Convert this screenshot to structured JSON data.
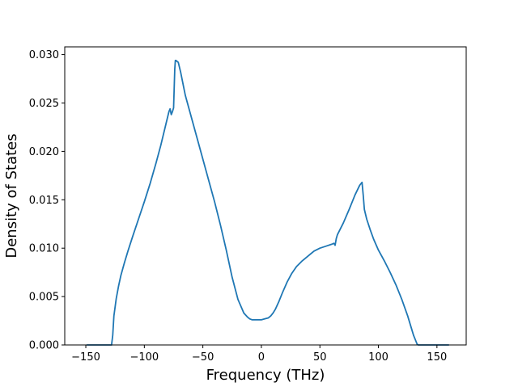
{
  "chart_data": {
    "type": "line",
    "title": "",
    "xlabel": "Frequency (THz)",
    "ylabel": "Density of States",
    "xlim": [
      -168,
      175
    ],
    "ylim": [
      0,
      0.0308
    ],
    "xticks": [
      -150,
      -100,
      -50,
      0,
      50,
      100,
      150
    ],
    "xtick_labels": [
      "−150",
      "−100",
      "−50",
      "0",
      "50",
      "100",
      "150"
    ],
    "yticks": [
      0,
      0.005,
      0.01,
      0.015,
      0.02,
      0.025,
      0.03
    ],
    "ytick_labels": [
      "0.000",
      "0.005",
      "0.010",
      "0.015",
      "0.020",
      "0.025",
      "0.030"
    ],
    "grid": false,
    "series": [
      {
        "color": "#1f77b4",
        "x": [
          -149,
          -128,
          -127,
          -126,
          -124,
          -122,
          -120,
          -117,
          -114,
          -110,
          -105,
          -100,
          -95,
          -90,
          -86,
          -82,
          -80,
          -79,
          -78,
          -77,
          -76,
          -75,
          -74,
          -73.5,
          -73,
          -71,
          -69,
          -67,
          -65,
          -60,
          -55,
          -50,
          -45,
          -40,
          -35,
          -30,
          -25,
          -20,
          -15,
          -12,
          -10,
          -8,
          -6,
          -4,
          -2,
          0,
          3,
          6,
          8,
          10,
          12,
          15,
          18,
          22,
          26,
          30,
          35,
          40,
          45,
          50,
          55,
          60,
          62,
          63,
          64,
          65,
          70,
          75,
          80,
          84,
          86,
          87,
          88,
          90,
          93,
          96,
          100,
          105,
          110,
          115,
          120,
          125,
          128,
          130,
          132,
          133,
          134,
          135,
          140,
          145,
          150,
          160
        ],
        "y": [
          0,
          0,
          0.001,
          0.003,
          0.0048,
          0.0061,
          0.0072,
          0.0085,
          0.0097,
          0.0112,
          0.013,
          0.0148,
          0.0167,
          0.0188,
          0.0206,
          0.0226,
          0.0236,
          0.0241,
          0.0244,
          0.0238,
          0.0241,
          0.0245,
          0.0285,
          0.0294,
          0.0294,
          0.0292,
          0.0282,
          0.027,
          0.0258,
          0.0236,
          0.0214,
          0.0192,
          0.017,
          0.0148,
          0.0124,
          0.0098,
          0.007,
          0.0047,
          0.0033,
          0.0029,
          0.0027,
          0.0026,
          0.0026,
          0.0026,
          0.0026,
          0.0026,
          0.0027,
          0.0028,
          0.003,
          0.0033,
          0.0037,
          0.0045,
          0.0054,
          0.0065,
          0.0074,
          0.0081,
          0.0087,
          0.0092,
          0.0097,
          0.01,
          0.0102,
          0.0104,
          0.0105,
          0.0103,
          0.011,
          0.0114,
          0.0126,
          0.014,
          0.0155,
          0.0165,
          0.0168,
          0.0155,
          0.014,
          0.013,
          0.0119,
          0.0109,
          0.0098,
          0.0087,
          0.0075,
          0.0062,
          0.0047,
          0.003,
          0.0018,
          0.001,
          0.0004,
          0.0001,
          0,
          0,
          0,
          0,
          0,
          0
        ]
      }
    ]
  }
}
